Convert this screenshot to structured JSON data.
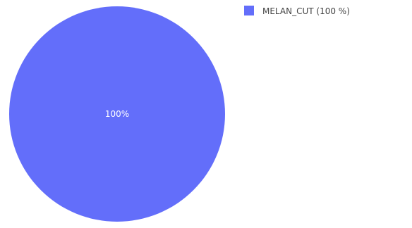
{
  "chart_data": {
    "type": "pie",
    "slices": [
      {
        "label": "MELAN_CUT",
        "value": 100,
        "percent_label": "100%",
        "legend_label": "MELAN_CUT (100 %)",
        "color": "#636efa"
      }
    ],
    "legend_position": "top-right"
  }
}
